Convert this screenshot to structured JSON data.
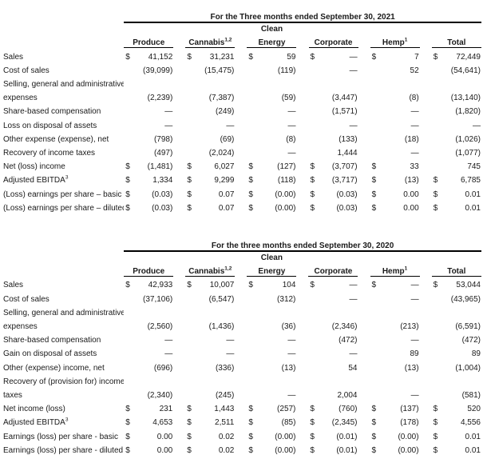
{
  "report": {
    "tables": [
      {
        "title": "For the Three months ended September 30, 2021",
        "columns": [
          {
            "label": "Produce",
            "sup": "",
            "over": ""
          },
          {
            "label": "Cannabis",
            "sup": "1,2",
            "over": ""
          },
          {
            "label": "Energy",
            "sup": "",
            "over": "Clean"
          },
          {
            "label": "Corporate",
            "sup": "",
            "over": ""
          },
          {
            "label": "Hemp",
            "sup": "1",
            "over": ""
          },
          {
            "label": "Total",
            "sup": "",
            "over": ""
          }
        ],
        "rows": [
          {
            "label": "Sales",
            "sup": "",
            "cells": [
              [
                "$",
                "41,152"
              ],
              [
                "$",
                "31,231"
              ],
              [
                "$",
                "59"
              ],
              [
                "$",
                "—"
              ],
              [
                "$",
                "7"
              ],
              [
                "$",
                "72,449"
              ]
            ]
          },
          {
            "label": "Cost of sales",
            "sup": "",
            "cells": [
              [
                "",
                "(39,099)"
              ],
              [
                "",
                "(15,475)"
              ],
              [
                "",
                "(119)"
              ],
              [
                "",
                "—"
              ],
              [
                "",
                "52"
              ],
              [
                "",
                "(54,641)"
              ]
            ]
          },
          {
            "label": "Selling, general and administrative",
            "sup": "",
            "cells": null
          },
          {
            "label": "expenses",
            "sup": "",
            "cells": [
              [
                "",
                "(2,239)"
              ],
              [
                "",
                "(7,387)"
              ],
              [
                "",
                "(59)"
              ],
              [
                "",
                "(3,447)"
              ],
              [
                "",
                "(8)"
              ],
              [
                "",
                "(13,140)"
              ]
            ]
          },
          {
            "label": "Share-based compensation",
            "sup": "",
            "cells": [
              [
                "",
                "—"
              ],
              [
                "",
                "(249)"
              ],
              [
                "",
                "—"
              ],
              [
                "",
                "(1,571)"
              ],
              [
                "",
                "—"
              ],
              [
                "",
                "(1,820)"
              ]
            ]
          },
          {
            "label": "Loss on disposal of assets",
            "sup": "",
            "cells": [
              [
                "",
                "—"
              ],
              [
                "",
                "—"
              ],
              [
                "",
                "—"
              ],
              [
                "",
                "—"
              ],
              [
                "",
                "—"
              ],
              [
                "",
                "—"
              ]
            ]
          },
          {
            "label": "Other expense (expense), net",
            "sup": "",
            "cells": [
              [
                "",
                "(798)"
              ],
              [
                "",
                "(69)"
              ],
              [
                "",
                "(8)"
              ],
              [
                "",
                "(133)"
              ],
              [
                "",
                "(18)"
              ],
              [
                "",
                "(1,026)"
              ]
            ]
          },
          {
            "label": "Recovery of income taxes",
            "sup": "",
            "cells": [
              [
                "",
                "(497)"
              ],
              [
                "",
                "(2,024)"
              ],
              [
                "",
                "—"
              ],
              [
                "",
                "1,444"
              ],
              [
                "",
                "—"
              ],
              [
                "",
                "(1,077)"
              ]
            ]
          },
          {
            "label": "Net (loss) income",
            "sup": "",
            "cells": [
              [
                "$",
                "(1,481)"
              ],
              [
                "$",
                "6,027"
              ],
              [
                "$",
                "(127)"
              ],
              [
                "$",
                "(3,707)"
              ],
              [
                "$",
                "33"
              ],
              [
                "",
                "745"
              ]
            ]
          },
          {
            "label": "Adjusted EBITDA",
            "sup": "3",
            "cells": [
              [
                "$",
                "1,334"
              ],
              [
                "$",
                "9,299"
              ],
              [
                "$",
                "(118)"
              ],
              [
                "$",
                "(3,717)"
              ],
              [
                "$",
                "(13)"
              ],
              [
                "$",
                "6,785"
              ]
            ]
          },
          {
            "label": "(Loss) earnings per share – basic",
            "sup": "",
            "cells": [
              [
                "$",
                "(0.03)"
              ],
              [
                "$",
                "0.07"
              ],
              [
                "$",
                "(0.00)"
              ],
              [
                "$",
                "(0.03)"
              ],
              [
                "$",
                "0.00"
              ],
              [
                "$",
                "0.01"
              ]
            ]
          },
          {
            "label": "(Loss) earnings per share – diluted",
            "sup": "",
            "cells": [
              [
                "$",
                "(0.03)"
              ],
              [
                "$",
                "0.07"
              ],
              [
                "$",
                "(0.00)"
              ],
              [
                "$",
                "(0.03)"
              ],
              [
                "$",
                "0.00"
              ],
              [
                "$",
                "0.01"
              ]
            ]
          }
        ]
      },
      {
        "title": "For the three months ended September 30, 2020",
        "columns": [
          {
            "label": "Produce",
            "sup": "",
            "over": ""
          },
          {
            "label": "Cannabis",
            "sup": "1,2",
            "over": ""
          },
          {
            "label": "Energy",
            "sup": "",
            "over": "Clean"
          },
          {
            "label": "Corporate",
            "sup": "",
            "over": ""
          },
          {
            "label": "Hemp",
            "sup": "1",
            "over": ""
          },
          {
            "label": "Total",
            "sup": "",
            "over": ""
          }
        ],
        "rows": [
          {
            "label": "Sales",
            "sup": "",
            "cells": [
              [
                "$",
                "42,933"
              ],
              [
                "$",
                "10,007"
              ],
              [
                "$",
                "104"
              ],
              [
                "$",
                "—"
              ],
              [
                "$",
                "—"
              ],
              [
                "$",
                "53,044"
              ]
            ]
          },
          {
            "label": "Cost of sales",
            "sup": "",
            "cells": [
              [
                "",
                "(37,106)"
              ],
              [
                "",
                "(6,547)"
              ],
              [
                "",
                "(312)"
              ],
              [
                "",
                "—"
              ],
              [
                "",
                "—"
              ],
              [
                "",
                "(43,965)"
              ]
            ]
          },
          {
            "label": "Selling, general and administrative",
            "sup": "",
            "cells": null
          },
          {
            "label": "expenses",
            "sup": "",
            "cells": [
              [
                "",
                "(2,560)"
              ],
              [
                "",
                "(1,436)"
              ],
              [
                "",
                "(36)"
              ],
              [
                "",
                "(2,346)"
              ],
              [
                "",
                "(213)"
              ],
              [
                "",
                "(6,591)"
              ]
            ]
          },
          {
            "label": "Share-based compensation",
            "sup": "",
            "cells": [
              [
                "",
                "—"
              ],
              [
                "",
                "—"
              ],
              [
                "",
                "—"
              ],
              [
                "",
                "(472)"
              ],
              [
                "",
                "—"
              ],
              [
                "",
                "(472)"
              ]
            ]
          },
          {
            "label": "Gain on disposal of assets",
            "sup": "",
            "cells": [
              [
                "",
                "—"
              ],
              [
                "",
                "—"
              ],
              [
                "",
                "—"
              ],
              [
                "",
                "—"
              ],
              [
                "",
                "89"
              ],
              [
                "",
                "89"
              ]
            ]
          },
          {
            "label": "Other (expense) income, net",
            "sup": "",
            "cells": [
              [
                "",
                "(696)"
              ],
              [
                "",
                "(336)"
              ],
              [
                "",
                "(13)"
              ],
              [
                "",
                "54"
              ],
              [
                "",
                "(13)"
              ],
              [
                "",
                "(1,004)"
              ]
            ]
          },
          {
            "label": "Recovery of (provision for) income",
            "sup": "",
            "cells": null
          },
          {
            "label": "taxes",
            "sup": "",
            "cells": [
              [
                "",
                "(2,340)"
              ],
              [
                "",
                "(245)"
              ],
              [
                "",
                "—"
              ],
              [
                "",
                "2,004"
              ],
              [
                "",
                "—"
              ],
              [
                "",
                "(581)"
              ]
            ]
          },
          {
            "label": "Net income (loss)",
            "sup": "",
            "cells": [
              [
                "$",
                "231"
              ],
              [
                "$",
                "1,443"
              ],
              [
                "$",
                "(257)"
              ],
              [
                "$",
                "(760)"
              ],
              [
                "$",
                "(137)"
              ],
              [
                "$",
                "520"
              ]
            ]
          },
          {
            "label": "Adjusted EBITDA",
            "sup": "3",
            "cells": [
              [
                "$",
                "4,653"
              ],
              [
                "$",
                "2,511"
              ],
              [
                "$",
                "(85)"
              ],
              [
                "$",
                "(2,345)"
              ],
              [
                "$",
                "(178)"
              ],
              [
                "$",
                "4,556"
              ]
            ]
          },
          {
            "label": "Earnings (loss) per share - basic",
            "sup": "",
            "cells": [
              [
                "$",
                "0.00"
              ],
              [
                "$",
                "0.02"
              ],
              [
                "$",
                "(0.00)"
              ],
              [
                "$",
                "(0.01)"
              ],
              [
                "$",
                "(0.00)"
              ],
              [
                "$",
                "0.01"
              ]
            ]
          },
          {
            "label": "Earnings (loss) per share - diluted",
            "sup": "",
            "cells": [
              [
                "$",
                "0.00"
              ],
              [
                "$",
                "0.02"
              ],
              [
                "$",
                "(0.00)"
              ],
              [
                "$",
                "(0.01)"
              ],
              [
                "$",
                "(0.00)"
              ],
              [
                "$",
                "0.01"
              ]
            ]
          }
        ]
      }
    ]
  }
}
